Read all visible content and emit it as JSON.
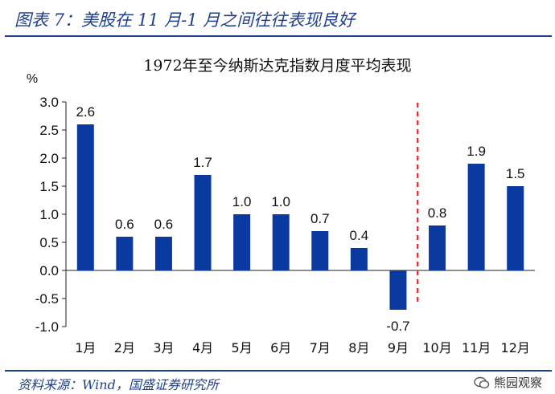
{
  "figure": {
    "title": "图表 7：美股在 11 月-1 月之间往往表现良好",
    "source": "资料来源：Wind，国盛证券研究所",
    "watermark": "熊园观察"
  },
  "chart_data": {
    "type": "bar",
    "title": "1972年至今纳斯达克指数月度平均表现",
    "ylabel": "%",
    "categories": [
      "1月",
      "2月",
      "3月",
      "4月",
      "5月",
      "6月",
      "7月",
      "8月",
      "9月",
      "10月",
      "11月",
      "12月"
    ],
    "values": [
      2.6,
      0.6,
      0.6,
      1.7,
      1.0,
      1.0,
      0.7,
      0.4,
      -0.7,
      0.8,
      1.9,
      1.5
    ],
    "data_labels": [
      "2.6",
      "0.6",
      "0.6",
      "1.7",
      "1.0",
      "1.0",
      "0.7",
      "0.4",
      "-0.7",
      "0.8",
      "1.9",
      "1.5"
    ],
    "ylim": [
      -1.0,
      3.0
    ],
    "yticks": [
      "3.0",
      "2.5",
      "2.0",
      "1.5",
      "1.0",
      "0.5",
      "0.0",
      "-0.5",
      "-1.0"
    ],
    "ytick_values": [
      3.0,
      2.5,
      2.0,
      1.5,
      1.0,
      0.5,
      0.0,
      -0.5,
      -1.0
    ],
    "grid": false,
    "bar_color": "#0a3aa0",
    "divider_between": [
      "9月",
      "10月"
    ],
    "divider_color": "#e32626"
  }
}
